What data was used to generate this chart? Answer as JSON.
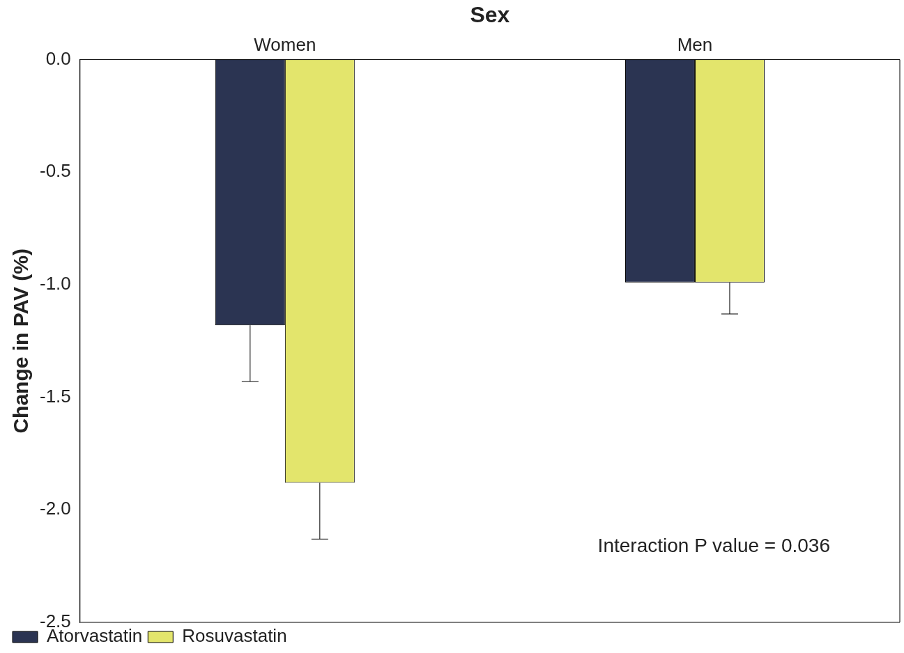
{
  "chart_data": {
    "type": "bar",
    "xlabel": "Sex",
    "ylabel": "Change in PAV (%)",
    "categories": [
      "Women",
      "Men"
    ],
    "series": [
      {
        "name": "Atorvastatin",
        "color": "#2b3452",
        "values": [
          -1.18,
          -0.99
        ],
        "errors": [
          [
            -1.43,
            -1.18
          ],
          null
        ]
      },
      {
        "name": "Rosuvastatin",
        "color": "#e3e56c",
        "values": [
          -1.88,
          -0.99
        ],
        "errors": [
          [
            -2.13,
            -1.88
          ],
          [
            -1.13,
            -0.99
          ]
        ]
      }
    ],
    "ylim": [
      -2.5,
      0
    ],
    "yticks": [
      {
        "value": 0,
        "label": "0.0"
      },
      -0.5,
      {
        "value": -1,
        "label": "-1.0"
      },
      -1.5,
      {
        "value": -2,
        "label": "-2.0"
      },
      -2.5
    ],
    "annotations": [
      "Interaction P value = 0.036"
    ],
    "grid": false,
    "legend": "bottom left"
  }
}
